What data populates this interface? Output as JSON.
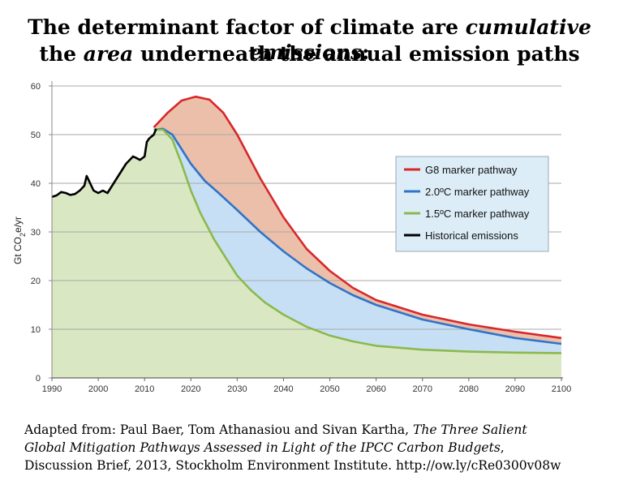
{
  "title": {
    "line1": {
      "pre": "The determinant factor of climate are ",
      "em": "cumulative emissions",
      "post": ":"
    },
    "line2": {
      "pre": "the ",
      "em": "area",
      "post": " underneath the annual emission paths"
    }
  },
  "caption": {
    "line1": {
      "pre": "Adapted from: Paul Baer, Tom Athanasiou and Sivan Kartha,  ",
      "em": "The Three Salient"
    },
    "line2": {
      "em": "Global Mitigation Pathways Assessed in Light of the IPCC Carbon Budgets",
      "post": ","
    },
    "line3": {
      "pre": "Discussion Brief, 2013, Stockholm Environment Institute. http://ow.ly/cRe0300v08w"
    }
  },
  "chart_data": {
    "type": "area",
    "ylabel": "Gt CO2e/yr",
    "ylabel_main": "Gt CO",
    "ylabel_sub": "2",
    "ylabel_tail": "e/yr",
    "xlim": [
      1990,
      2100
    ],
    "ylim": [
      0,
      60
    ],
    "xticks": [
      1990,
      2000,
      2010,
      2020,
      2030,
      2040,
      2050,
      2060,
      2070,
      2080,
      2090,
      2100
    ],
    "yticks": [
      0,
      10,
      20,
      30,
      40,
      50,
      60
    ],
    "grid": "horizontal",
    "legend_position": "right",
    "series": [
      {
        "name": "G8 marker pathway",
        "color": "#d7282b",
        "fill": "#ebbfaa",
        "points": [
          [
            2012,
            51.5
          ],
          [
            2015,
            54.5
          ],
          [
            2018,
            57
          ],
          [
            2021,
            57.8
          ],
          [
            2024,
            57.2
          ],
          [
            2027,
            54.5
          ],
          [
            2030,
            50
          ],
          [
            2035,
            41
          ],
          [
            2040,
            33
          ],
          [
            2045,
            26.5
          ],
          [
            2050,
            22
          ],
          [
            2055,
            18.5
          ],
          [
            2060,
            16
          ],
          [
            2065,
            14.5
          ],
          [
            2070,
            13
          ],
          [
            2080,
            11
          ],
          [
            2090,
            9.5
          ],
          [
            2100,
            8.2
          ]
        ]
      },
      {
        "name": "2.0ºC marker pathway",
        "color": "#2f74c8",
        "fill": "#c7dff5",
        "points": [
          [
            2012,
            51
          ],
          [
            2014,
            51.2
          ],
          [
            2016,
            50
          ],
          [
            2018,
            47
          ],
          [
            2020,
            44
          ],
          [
            2023,
            40.5
          ],
          [
            2026,
            38
          ],
          [
            2030,
            34.5
          ],
          [
            2035,
            30
          ],
          [
            2040,
            26
          ],
          [
            2045,
            22.5
          ],
          [
            2050,
            19.5
          ],
          [
            2055,
            17
          ],
          [
            2060,
            15
          ],
          [
            2065,
            13.5
          ],
          [
            2070,
            12
          ],
          [
            2080,
            10
          ],
          [
            2090,
            8.2
          ],
          [
            2100,
            7
          ]
        ]
      },
      {
        "name": "1.5ºC marker pathway",
        "color": "#8cb94d",
        "fill": "#d9e8c3",
        "points": [
          [
            2012,
            51
          ],
          [
            2014,
            51
          ],
          [
            2016,
            49
          ],
          [
            2018,
            44
          ],
          [
            2020,
            38.5
          ],
          [
            2022,
            34
          ],
          [
            2025,
            28.5
          ],
          [
            2028,
            24
          ],
          [
            2030,
            21
          ],
          [
            2033,
            18
          ],
          [
            2036,
            15.5
          ],
          [
            2040,
            13
          ],
          [
            2045,
            10.5
          ],
          [
            2050,
            8.7
          ],
          [
            2055,
            7.5
          ],
          [
            2060,
            6.6
          ],
          [
            2070,
            5.8
          ],
          [
            2080,
            5.4
          ],
          [
            2090,
            5.2
          ],
          [
            2100,
            5.1
          ]
        ]
      },
      {
        "name": "Historical emissions",
        "color": "#000000",
        "points": [
          [
            1990,
            37.2
          ],
          [
            1991,
            37.5
          ],
          [
            1992,
            38.2
          ],
          [
            1993,
            38
          ],
          [
            1994,
            37.6
          ],
          [
            1995,
            37.8
          ],
          [
            1996,
            38.5
          ],
          [
            1997,
            39.5
          ],
          [
            1997.5,
            41.5
          ],
          [
            1998,
            40.5
          ],
          [
            1999,
            38.5
          ],
          [
            2000,
            38
          ],
          [
            2001,
            38.5
          ],
          [
            2002,
            38
          ],
          [
            2003,
            39.5
          ],
          [
            2004,
            41
          ],
          [
            2005,
            42.5
          ],
          [
            2006,
            44
          ],
          [
            2007,
            45
          ],
          [
            2007.5,
            45.5
          ],
          [
            2008,
            45.3
          ],
          [
            2009,
            44.8
          ],
          [
            2010,
            45.5
          ],
          [
            2010.5,
            48.5
          ],
          [
            2011,
            49.2
          ],
          [
            2012,
            50
          ],
          [
            2012.5,
            51.2
          ]
        ]
      }
    ]
  }
}
